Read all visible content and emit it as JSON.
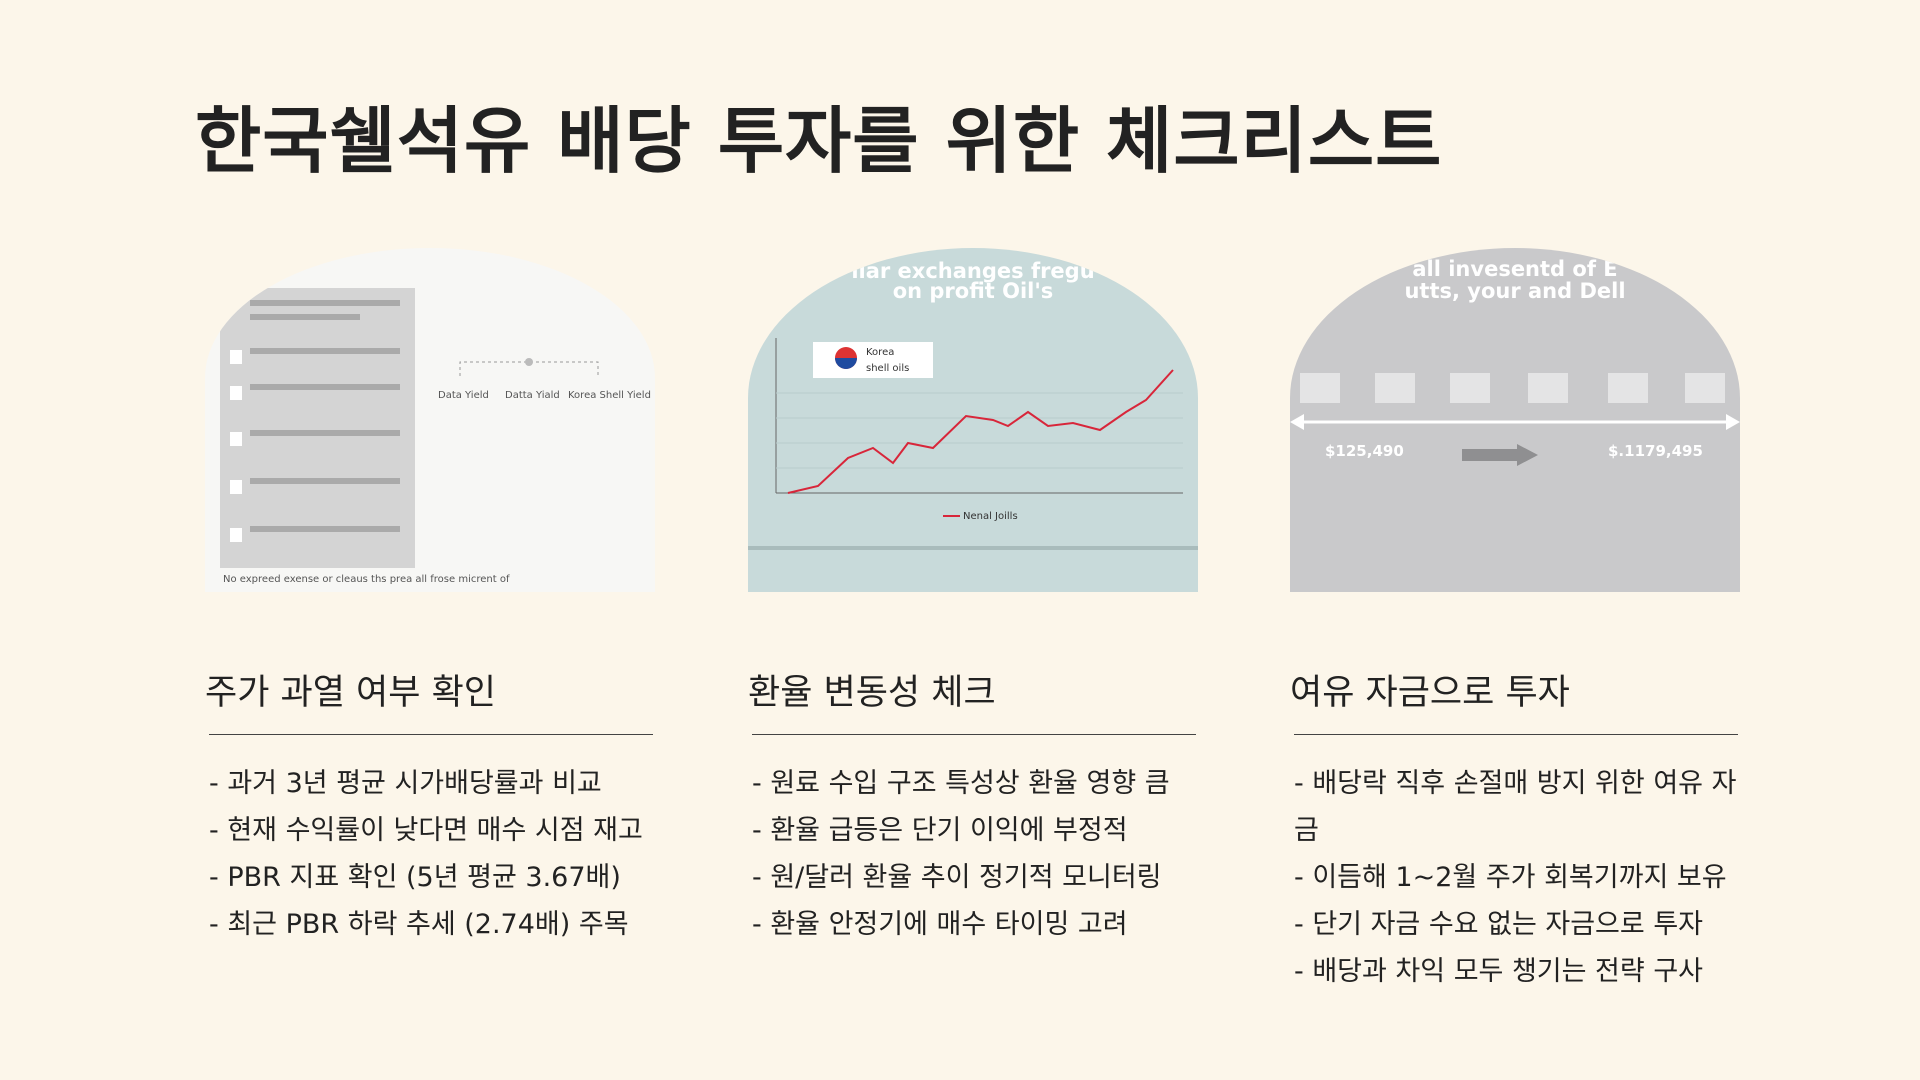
{
  "title": "한국쉘석유 배당 투자를 위한 체크리스트",
  "cards": [
    {
      "heading": "주가 과열 여부 확인",
      "bullets": [
        "- 과거 3년 평균 시가배당률과 비교",
        "- 현재 수익률이 낮다면 매수 시점 재고",
        "- PBR 지표 확인 (5년 평균 3.67배)",
        "- 최근 PBR 하락 추세 (2.74배) 주목"
      ],
      "image": {
        "texts": [
          "Data Yield",
          "Datta Yiald",
          "Korea Shell Yield",
          "No expreed exense or cleaus ths prea all frose micrent of"
        ]
      }
    },
    {
      "heading": "환율 변동성 체크",
      "bullets": [
        "- 원료 수입 구조 특성상 환율 영향 큼",
        "- 환율 급등은 단기 이익에 부정적",
        "- 원/달러 환율 추이 정기적 모니터링",
        "- 환율 안정기에 매수 타이밍 고려"
      ],
      "image": {
        "texts": [
          "llar exchanges fregu",
          "on profit Oil's",
          "Korea",
          "shell oils",
          "Nenal Joills"
        ]
      }
    },
    {
      "heading": "여유 자금으로 투자",
      "bullets": [
        "- 배당락 직후 손절매 방지 위한 여유 자금",
        "- 이듬해 1~2월 주가 회복기까지 보유",
        "- 단기 자금 수요 없는 자금으로 투자",
        "- 배당과 차익 모두 챙기는 전략 구사"
      ],
      "image": {
        "texts": [
          "all invesentd of E",
          "utts, your and Dell",
          "$125,490",
          "$.1179,495"
        ]
      }
    }
  ]
}
